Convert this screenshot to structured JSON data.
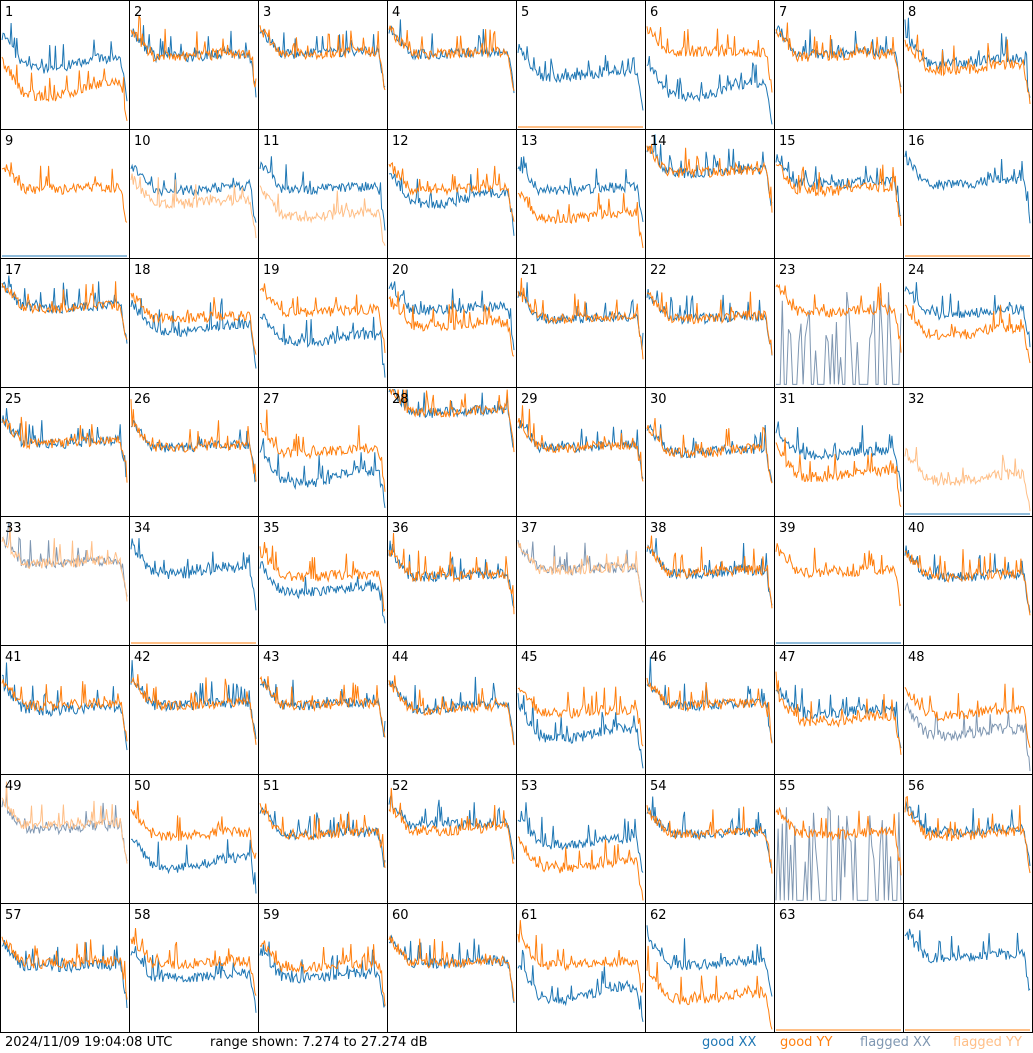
{
  "footer": {
    "timestamp": "2024/11/09 19:04:08 UTC",
    "range_text": "range shown: 7.274 to 27.274 dB"
  },
  "legend": [
    {
      "label": "good XX",
      "color": "#1f77b4"
    },
    {
      "label": "good YY",
      "color": "#ff7f0e"
    },
    {
      "label": "flagged XX",
      "color": "#7f97b2"
    },
    {
      "label": "flagged YY",
      "color": "#ffbf87"
    }
  ],
  "colors": {
    "good_xx": "#1f77b4",
    "good_yy": "#ff7f0e",
    "flagged_xx": "#7f97b2",
    "flagged_yy": "#ffbf87"
  },
  "chart_data": {
    "type": "line",
    "grid": "8x8 small multiples, one panel per antenna",
    "ylim": [
      7.274,
      27.274
    ],
    "yunit": "dB",
    "panels": [
      {
        "label": "1",
        "xx": "n",
        "yy": "n",
        "ox": 0.55,
        "oy": 0.35,
        "dx": 0.08,
        "dy": 0.1
      },
      {
        "label": "2",
        "xx": "n",
        "yy": "n",
        "ox": 0.58,
        "oy": 0.58,
        "dx": 0.02,
        "dy": 0.02
      },
      {
        "label": "3",
        "xx": "n",
        "yy": "n",
        "ox": 0.6,
        "oy": 0.6,
        "dx": 0.02,
        "dy": 0.02
      },
      {
        "label": "4",
        "xx": "n",
        "yy": "n",
        "ox": 0.6,
        "oy": 0.6,
        "dx": 0.02,
        "dy": 0.02
      },
      {
        "label": "5",
        "xx": "n",
        "yy": "z",
        "ox": 0.45,
        "oy": 0.0,
        "dx": 0.05,
        "dy": 0.0
      },
      {
        "label": "6",
        "xx": "n",
        "yy": "n",
        "ox": 0.35,
        "oy": 0.6,
        "dx": 0.1,
        "dy": 0.0
      },
      {
        "label": "7",
        "xx": "n",
        "yy": "n",
        "ox": 0.6,
        "oy": 0.58,
        "dx": 0.02,
        "dy": 0.02
      },
      {
        "label": "8",
        "xx": "n",
        "yy": "n",
        "ox": 0.55,
        "oy": 0.5,
        "dx": 0.05,
        "dy": 0.05
      },
      {
        "label": "9",
        "xx": "z",
        "yy": "n",
        "ox": 0.0,
        "oy": 0.55,
        "dx": 0.0,
        "dy": 0.02
      },
      {
        "label": "10",
        "xx": "n",
        "yy": "f",
        "ox": 0.55,
        "oy": 0.45,
        "dx": 0.03,
        "dy": 0.03
      },
      {
        "label": "11",
        "xx": "n",
        "yy": "f",
        "ox": 0.55,
        "oy": 0.35,
        "dx": 0.02,
        "dy": 0.03
      },
      {
        "label": "12",
        "xx": "n",
        "yy": "n",
        "ox": 0.5,
        "oy": 0.55,
        "dx": 0.08,
        "dy": 0.02
      },
      {
        "label": "13",
        "xx": "n",
        "yy": "n",
        "ox": 0.55,
        "oy": 0.35,
        "dx": 0.03,
        "dy": 0.05
      },
      {
        "label": "14",
        "xx": "n",
        "yy": "n",
        "ox": 0.68,
        "oy": 0.68,
        "dx": 0.02,
        "dy": 0.02
      },
      {
        "label": "15",
        "xx": "n",
        "yy": "n",
        "ox": 0.6,
        "oy": 0.55,
        "dx": 0.03,
        "dy": 0.03
      },
      {
        "label": "16",
        "xx": "n",
        "yy": "z",
        "ox": 0.6,
        "oy": 0.0,
        "dx": 0.03,
        "dy": 0.0
      },
      {
        "label": "17",
        "xx": "n",
        "yy": "n",
        "ox": 0.63,
        "oy": 0.63,
        "dx": 0.02,
        "dy": 0.02
      },
      {
        "label": "18",
        "xx": "n",
        "yy": "n",
        "ox": 0.48,
        "oy": 0.55,
        "dx": 0.05,
        "dy": 0.02
      },
      {
        "label": "19",
        "xx": "n",
        "yy": "n",
        "ox": 0.4,
        "oy": 0.6,
        "dx": 0.05,
        "dy": 0.02
      },
      {
        "label": "20",
        "xx": "n",
        "yy": "n",
        "ox": 0.62,
        "oy": 0.5,
        "dx": 0.02,
        "dy": 0.03
      },
      {
        "label": "21",
        "xx": "n",
        "yy": "n",
        "ox": 0.55,
        "oy": 0.55,
        "dx": 0.02,
        "dy": 0.02
      },
      {
        "label": "22",
        "xx": "n",
        "yy": "n",
        "ox": 0.55,
        "oy": 0.55,
        "dx": 0.02,
        "dy": 0.02
      },
      {
        "label": "23",
        "xx": "s",
        "yy": "n",
        "ox": 0.3,
        "oy": 0.6,
        "dx": 0.05,
        "dy": 0.02
      },
      {
        "label": "24",
        "xx": "n",
        "yy": "n",
        "ox": 0.6,
        "oy": 0.45,
        "dx": 0.04,
        "dy": 0.05
      },
      {
        "label": "25",
        "xx": "n",
        "yy": "n",
        "ox": 0.58,
        "oy": 0.58,
        "dx": 0.02,
        "dy": 0.02
      },
      {
        "label": "26",
        "xx": "n",
        "yy": "n",
        "ox": 0.55,
        "oy": 0.55,
        "dx": 0.02,
        "dy": 0.02
      },
      {
        "label": "27",
        "xx": "n",
        "yy": "n",
        "ox": 0.35,
        "oy": 0.52,
        "dx": 0.1,
        "dy": 0.03
      },
      {
        "label": "28",
        "xx": "n",
        "yy": "n",
        "ox": 0.82,
        "oy": 0.82,
        "dx": 0.02,
        "dy": 0.02
      },
      {
        "label": "29",
        "xx": "n",
        "yy": "n",
        "ox": 0.55,
        "oy": 0.55,
        "dx": 0.02,
        "dy": 0.02
      },
      {
        "label": "30",
        "xx": "n",
        "yy": "n",
        "ox": 0.52,
        "oy": 0.52,
        "dx": 0.03,
        "dy": 0.03
      },
      {
        "label": "31",
        "xx": "n",
        "yy": "n",
        "ox": 0.5,
        "oy": 0.35,
        "dx": 0.03,
        "dy": 0.05
      },
      {
        "label": "32",
        "xx": "z",
        "yy": "f",
        "ox": 0.0,
        "oy": 0.32,
        "dx": 0.0,
        "dy": 0.05
      },
      {
        "label": "33",
        "xx": "f",
        "yy": "f",
        "ox": 0.65,
        "oy": 0.65,
        "dx": 0.02,
        "dy": 0.02
      },
      {
        "label": "34",
        "xx": "n",
        "yy": "z",
        "ox": 0.6,
        "oy": 0.0,
        "dx": 0.05,
        "dy": 0.05
      },
      {
        "label": "35",
        "xx": "n",
        "yy": "n",
        "ox": 0.45,
        "oy": 0.55,
        "dx": 0.05,
        "dy": 0.02
      },
      {
        "label": "36",
        "xx": "n",
        "yy": "n",
        "ox": 0.55,
        "oy": 0.55,
        "dx": 0.02,
        "dy": 0.02
      },
      {
        "label": "37",
        "xx": "f",
        "yy": "f",
        "ox": 0.6,
        "oy": 0.6,
        "dx": 0.02,
        "dy": 0.02
      },
      {
        "label": "38",
        "xx": "n",
        "yy": "n",
        "ox": 0.58,
        "oy": 0.58,
        "dx": 0.03,
        "dy": 0.02
      },
      {
        "label": "39",
        "xx": "z",
        "yy": "n",
        "ox": 0.0,
        "oy": 0.58,
        "dx": 0.0,
        "dy": 0.02
      },
      {
        "label": "40",
        "xx": "n",
        "yy": "n",
        "ox": 0.55,
        "oy": 0.55,
        "dx": 0.02,
        "dy": 0.02
      },
      {
        "label": "41",
        "xx": "n",
        "yy": "n",
        "ox": 0.52,
        "oy": 0.55,
        "dx": 0.03,
        "dy": 0.02
      },
      {
        "label": "42",
        "xx": "n",
        "yy": "n",
        "ox": 0.55,
        "oy": 0.55,
        "dx": 0.02,
        "dy": 0.02
      },
      {
        "label": "43",
        "xx": "n",
        "yy": "n",
        "ox": 0.55,
        "oy": 0.55,
        "dx": 0.02,
        "dy": 0.02
      },
      {
        "label": "44",
        "xx": "n",
        "yy": "n",
        "ox": 0.55,
        "oy": 0.52,
        "dx": 0.05,
        "dy": 0.03
      },
      {
        "label": "45",
        "xx": "n",
        "yy": "n",
        "ox": 0.35,
        "oy": 0.5,
        "dx": 0.08,
        "dy": 0.03
      },
      {
        "label": "46",
        "xx": "n",
        "yy": "n",
        "ox": 0.55,
        "oy": 0.55,
        "dx": 0.02,
        "dy": 0.02
      },
      {
        "label": "47",
        "xx": "n",
        "yy": "n",
        "ox": 0.5,
        "oy": 0.45,
        "dx": 0.03,
        "dy": 0.05
      },
      {
        "label": "48",
        "xx": "f",
        "yy": "n",
        "ox": 0.35,
        "oy": 0.5,
        "dx": 0.05,
        "dy": 0.05
      },
      {
        "label": "49",
        "xx": "f",
        "yy": "f",
        "ox": 0.6,
        "oy": 0.62,
        "dx": 0.03,
        "dy": 0.02
      },
      {
        "label": "50",
        "xx": "n",
        "yy": "n",
        "ox": 0.35,
        "oy": 0.55,
        "dx": 0.08,
        "dy": 0.03
      },
      {
        "label": "51",
        "xx": "n",
        "yy": "n",
        "ox": 0.55,
        "oy": 0.55,
        "dx": 0.02,
        "dy": 0.02
      },
      {
        "label": "52",
        "xx": "n",
        "yy": "n",
        "ox": 0.62,
        "oy": 0.58,
        "dx": 0.02,
        "dy": 0.02
      },
      {
        "label": "53",
        "xx": "n",
        "yy": "n",
        "ox": 0.5,
        "oy": 0.32,
        "dx": 0.05,
        "dy": 0.05
      },
      {
        "label": "54",
        "xx": "n",
        "yy": "n",
        "ox": 0.55,
        "oy": 0.55,
        "dx": 0.02,
        "dy": 0.02
      },
      {
        "label": "55",
        "xx": "s",
        "yy": "n",
        "ox": 0.1,
        "oy": 0.55,
        "dx": 0.05,
        "dy": 0.02
      },
      {
        "label": "56",
        "xx": "n",
        "yy": "n",
        "ox": 0.58,
        "oy": 0.55,
        "dx": 0.03,
        "dy": 0.03
      },
      {
        "label": "57",
        "xx": "n",
        "yy": "n",
        "ox": 0.52,
        "oy": 0.55,
        "dx": 0.02,
        "dy": 0.02
      },
      {
        "label": "58",
        "xx": "n",
        "yy": "n",
        "ox": 0.45,
        "oy": 0.55,
        "dx": 0.03,
        "dy": 0.02
      },
      {
        "label": "59",
        "xx": "n",
        "yy": "n",
        "ox": 0.45,
        "oy": 0.52,
        "dx": 0.03,
        "dy": 0.02
      },
      {
        "label": "60",
        "xx": "n",
        "yy": "n",
        "ox": 0.55,
        "oy": 0.55,
        "dx": 0.02,
        "dy": 0.02
      },
      {
        "label": "61",
        "xx": "n",
        "yy": "n",
        "ox": 0.35,
        "oy": 0.55,
        "dx": 0.1,
        "dy": 0.03
      },
      {
        "label": "62",
        "xx": "n",
        "yy": "n",
        "ox": 0.55,
        "oy": 0.3,
        "dx": 0.03,
        "dy": 0.05
      },
      {
        "label": "63",
        "xx": "z",
        "yy": "z",
        "ox": 0.0,
        "oy": 0.0,
        "dx": 0.0,
        "dy": 0.0
      },
      {
        "label": "64",
        "xx": "n",
        "yy": "z",
        "ox": 0.6,
        "oy": 0.0,
        "dx": 0.03,
        "dy": 0.0
      }
    ]
  }
}
